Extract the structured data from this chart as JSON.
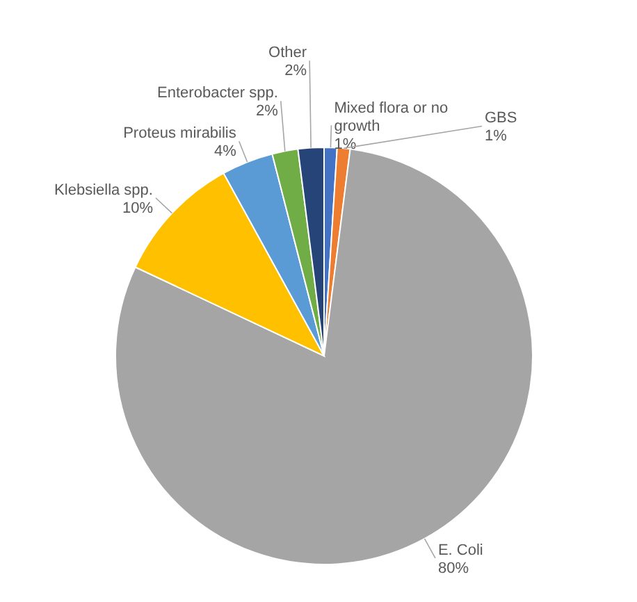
{
  "chart_data": {
    "type": "pie",
    "categories": [
      "Mixed flora or no growth",
      "GBS",
      "E. Coli",
      "Klebsiella spp.",
      "Proteus mirabilis",
      "Enterobacter spp.",
      "Other"
    ],
    "values": [
      1,
      1,
      80,
      10,
      4,
      2,
      2
    ],
    "colors": [
      "#4472c4",
      "#ed7d31",
      "#a5a5a5",
      "#ffc000",
      "#5b9bd5",
      "#70ad47",
      "#264478"
    ],
    "value_labels": [
      "1%",
      "1%",
      "80%",
      "10%",
      "4%",
      "2%",
      "2%"
    ]
  }
}
